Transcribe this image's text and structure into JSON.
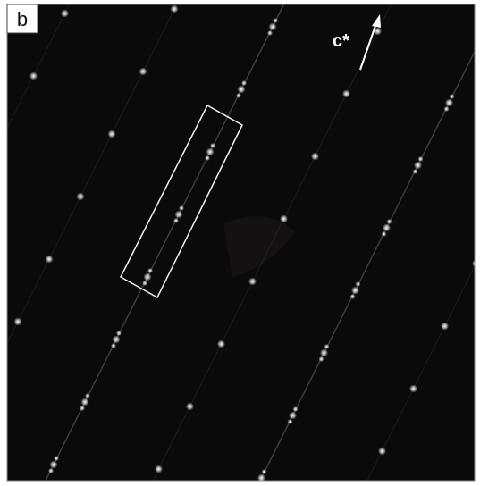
{
  "panel_label": "b",
  "axis_label": "c*"
}
